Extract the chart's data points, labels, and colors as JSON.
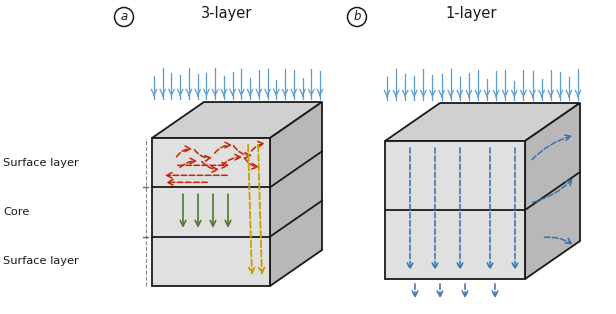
{
  "title_a": "3-layer",
  "title_b": "1-layer",
  "label_a": "a",
  "label_b": "b",
  "label_surface_top": "Surface layer",
  "label_core": "Core",
  "label_surface_bottom": "Surface layer",
  "rain_color": "#5b9bd5",
  "red_color": "#cc2200",
  "green_color": "#4a7a30",
  "yellow_color": "#c8a000",
  "blue_dash_color": "#3a70b0",
  "box_edge_color": "#1a1a1a",
  "box_front_color": "#e0e0e0",
  "box_top_color": "#d0d0d0",
  "box_right_color": "#b8b8b8",
  "bg_color": "#ffffff"
}
